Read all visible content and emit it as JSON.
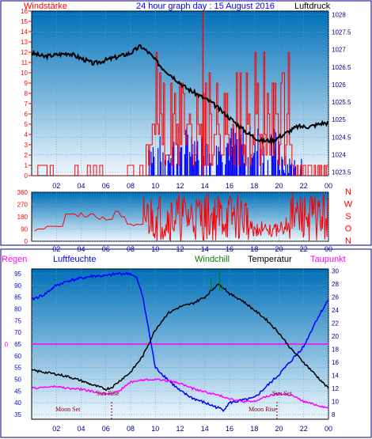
{
  "panel1": {
    "left_label": "Windstärke",
    "title": "24 hour graph day : 15 August 2016",
    "right_label": "Luftdruck"
  },
  "panel2": {
    "directions": [
      "N",
      "W",
      "S",
      "O",
      "N"
    ]
  },
  "panel3": {
    "labels": {
      "regen": "Regen",
      "luftfeuchte": "Luftfeuchte",
      "windchill": "Windchill",
      "temperatur": "Temperatur",
      "taupunkt": "Taupunkt"
    },
    "astro": {
      "sun_rise": "Sun Rise",
      "sun_set": "Sun Set",
      "moon_set": "Moon Set",
      "moon_rise": "Moon Rise"
    }
  },
  "colors": {
    "frame": "#000080",
    "wind": "#ff0000",
    "gust": "#0000ff",
    "pressure": "#000000",
    "direction": "#ff0000",
    "humidity": "#0000ff",
    "temperature": "#000000",
    "dewpoint": "#ff00ff",
    "windchill": "#008000",
    "rain_line": "#ff00ff",
    "gradient_top": "#0070b8",
    "gradient_bottom": "#e8f4fc"
  },
  "chart_data": [
    {
      "type": "line",
      "title": "24 hour graph day : 15 August 2016",
      "x_ticks": [
        "02",
        "04",
        "06",
        "08",
        "10",
        "12",
        "14",
        "16",
        "18",
        "20",
        "22",
        "00"
      ],
      "y_left": {
        "label": "Windstärke",
        "ticks": [
          0,
          1,
          2,
          3,
          4,
          5,
          6,
          7,
          8,
          9,
          10,
          11,
          12,
          13,
          14,
          15,
          16
        ],
        "range": [
          0,
          16
        ]
      },
      "y_right": {
        "label": "Luftdruck",
        "ticks": [
          1023.5,
          1024,
          1024.5,
          1025,
          1025.5,
          1026,
          1026.5,
          1027,
          1027.5,
          1028
        ],
        "range": [
          1023.4,
          1028.1
        ]
      },
      "series": [
        {
          "name": "Luftdruck",
          "axis": "right",
          "points": [
            [
              0,
              1026.9
            ],
            [
              1,
              1026.8
            ],
            [
              2,
              1026.85
            ],
            [
              3,
              1026.9
            ],
            [
              4,
              1026.75
            ],
            [
              5,
              1026.6
            ],
            [
              6,
              1026.7
            ],
            [
              7,
              1026.8
            ],
            [
              8,
              1026.9
            ],
            [
              8.8,
              1027.1
            ],
            [
              9.5,
              1026.9
            ],
            [
              10.5,
              1026.5
            ],
            [
              11.5,
              1026.2
            ],
            [
              12.5,
              1025.9
            ],
            [
              13.5,
              1025.7
            ],
            [
              14.5,
              1025.5
            ],
            [
              15.5,
              1025.2
            ],
            [
              16.5,
              1024.9
            ],
            [
              17.5,
              1024.6
            ],
            [
              18.5,
              1024.4
            ],
            [
              19.5,
              1024.4
            ],
            [
              20.5,
              1024.6
            ],
            [
              21.5,
              1024.8
            ],
            [
              22.5,
              1024.8
            ],
            [
              23.5,
              1024.9
            ],
            [
              24,
              1024.9
            ]
          ]
        },
        {
          "name": "Windstärke (mean)",
          "axis": "left",
          "points": [
            [
              0,
              0
            ],
            [
              2,
              0
            ],
            [
              2.2,
              1
            ],
            [
              2.5,
              0
            ],
            [
              3.5,
              1
            ],
            [
              4,
              0
            ],
            [
              5.5,
              1
            ],
            [
              6,
              0
            ],
            [
              7.5,
              0
            ],
            [
              8,
              1
            ],
            [
              8.5,
              0
            ],
            [
              9.5,
              2
            ],
            [
              10.5,
              3
            ],
            [
              11,
              2
            ],
            [
              11.5,
              4
            ],
            [
              12,
              2
            ],
            [
              12.5,
              5
            ],
            [
              13,
              3
            ],
            [
              13.5,
              6
            ],
            [
              14,
              4
            ],
            [
              14.3,
              6
            ],
            [
              15,
              3
            ],
            [
              15.5,
              5
            ],
            [
              16,
              2
            ],
            [
              16.5,
              4
            ],
            [
              17,
              3
            ],
            [
              17.5,
              5
            ],
            [
              18,
              2
            ],
            [
              18.5,
              3
            ],
            [
              19,
              2
            ],
            [
              19.5,
              4
            ],
            [
              20,
              2
            ],
            [
              20.5,
              1
            ],
            [
              21,
              0
            ],
            [
              21.5,
              2
            ],
            [
              22,
              1
            ],
            [
              23,
              1
            ],
            [
              24,
              1
            ]
          ]
        },
        {
          "name": "Windstärke (gust)",
          "axis": "left",
          "points": [
            [
              9.5,
              5
            ],
            [
              10.5,
              8
            ],
            [
              11.5,
              9
            ],
            [
              12.5,
              10
            ],
            [
              13,
              9
            ],
            [
              13.8,
              16
            ],
            [
              14.2,
              8
            ],
            [
              15,
              9
            ],
            [
              15.5,
              7
            ],
            [
              16,
              10
            ],
            [
              16.5,
              8
            ],
            [
              17.5,
              9
            ],
            [
              18.5,
              6
            ],
            [
              19.5,
              8
            ],
            [
              20,
              5
            ],
            [
              21,
              3
            ],
            [
              22,
              4
            ]
          ]
        }
      ]
    },
    {
      "type": "line",
      "title": "",
      "x_ticks": [
        "02",
        "04",
        "06",
        "08",
        "10",
        "12",
        "14",
        "16",
        "18",
        "20",
        "22",
        "00"
      ],
      "y_left": {
        "ticks": [
          0,
          90,
          180,
          270,
          360
        ],
        "range": [
          0,
          360
        ]
      },
      "y_right": {
        "ticks": [
          "N",
          "W",
          "S",
          "O",
          "N"
        ]
      },
      "series": [
        {
          "name": "Windrichtung",
          "points": [
            [
              0,
              90
            ],
            [
              1,
              90
            ],
            [
              1,
              110
            ],
            [
              2,
              110
            ],
            [
              2.3,
              200
            ],
            [
              3,
              200
            ],
            [
              3.5,
              180
            ],
            [
              4,
              180
            ],
            [
              4.5,
              200
            ],
            [
              5,
              160
            ],
            [
              6,
              160
            ],
            [
              6.5,
              220
            ],
            [
              7,
              180
            ],
            [
              7.3,
              90
            ],
            [
              8,
              90
            ],
            [
              8.5,
              220
            ],
            [
              9,
              240
            ],
            [
              10,
              120
            ],
            [
              11,
              260
            ],
            [
              12,
              150
            ],
            [
              13,
              240
            ],
            [
              14,
              100
            ],
            [
              15,
              260
            ],
            [
              16,
              130
            ],
            [
              17,
              200
            ],
            [
              18,
              60
            ],
            [
              19,
              80
            ],
            [
              20,
              50
            ],
            [
              21,
              200
            ],
            [
              22,
              240
            ],
            [
              23,
              220
            ],
            [
              24,
              250
            ]
          ]
        }
      ]
    },
    {
      "type": "line",
      "title": "",
      "x_ticks": [
        "02",
        "04",
        "06",
        "08",
        "10",
        "12",
        "14",
        "16",
        "18",
        "20",
        "22",
        "00"
      ],
      "y_left": {
        "label": "Luftfeuchte",
        "ticks": [
          35,
          40,
          45,
          50,
          55,
          60,
          65,
          70,
          75,
          80,
          85,
          90,
          95
        ],
        "range": [
          33,
          97
        ]
      },
      "y_right": {
        "label": "Temperatur",
        "ticks": [
          8,
          10,
          12,
          14,
          16,
          18,
          20,
          22,
          24,
          26,
          28,
          30
        ],
        "range": [
          7.3,
          30.3
        ]
      },
      "regen_axis": {
        "label": "Regen",
        "ticks": [
          0
        ]
      },
      "series": [
        {
          "name": "Luftfeuchte",
          "axis": "left",
          "points": [
            [
              0,
              84
            ],
            [
              1,
              86
            ],
            [
              2,
              90
            ],
            [
              3,
              92
            ],
            [
              4,
              93
            ],
            [
              5,
              94
            ],
            [
              6,
              94
            ],
            [
              7,
              95
            ],
            [
              8,
              95
            ],
            [
              8.5,
              93
            ],
            [
              9,
              85
            ],
            [
              9.5,
              70
            ],
            [
              10,
              55
            ],
            [
              11,
              50
            ],
            [
              12,
              45
            ],
            [
              13,
              42
            ],
            [
              14,
              40
            ],
            [
              15,
              38
            ],
            [
              15.5,
              37
            ],
            [
              16,
              40
            ],
            [
              17,
              41
            ],
            [
              18,
              42
            ],
            [
              19,
              47
            ],
            [
              20,
              52
            ],
            [
              21,
              58
            ],
            [
              22,
              64
            ],
            [
              23,
              75
            ],
            [
              24,
              84
            ]
          ]
        },
        {
          "name": "Temperatur",
          "axis": "right",
          "points": [
            [
              0,
              14.8
            ],
            [
              1,
              14.5
            ],
            [
              2,
              14.2
            ],
            [
              3,
              13.8
            ],
            [
              4,
              13.2
            ],
            [
              5,
              12.5
            ],
            [
              6,
              11.9
            ],
            [
              6.5,
              12.2
            ],
            [
              7,
              13
            ],
            [
              8,
              14.5
            ],
            [
              9,
              17
            ],
            [
              10,
              21
            ],
            [
              11,
              23.5
            ],
            [
              12,
              24.5
            ],
            [
              13,
              25
            ],
            [
              14,
              26
            ],
            [
              14.8,
              27.5
            ],
            [
              15,
              28
            ],
            [
              15.5,
              27.5
            ],
            [
              16,
              26.5
            ],
            [
              17,
              25.5
            ],
            [
              18,
              24
            ],
            [
              19,
              22.5
            ],
            [
              20,
              20.5
            ],
            [
              21,
              18
            ],
            [
              22,
              16
            ],
            [
              23,
              14
            ],
            [
              24,
              12
            ]
          ]
        },
        {
          "name": "Taupunkt",
          "axis": "right",
          "points": [
            [
              0,
              12
            ],
            [
              1,
              12.2
            ],
            [
              2,
              12.3
            ],
            [
              3,
              12
            ],
            [
              4,
              11.9
            ],
            [
              5,
              11.5
            ],
            [
              6,
              11.2
            ],
            [
              7,
              11.5
            ],
            [
              8,
              13
            ],
            [
              9,
              13.3
            ],
            [
              10,
              13.4
            ],
            [
              11,
              13.2
            ],
            [
              12,
              12.8
            ],
            [
              13,
              12
            ],
            [
              14,
              11.5
            ],
            [
              15,
              11
            ],
            [
              16,
              10.5
            ],
            [
              17,
              10
            ],
            [
              18,
              10
            ],
            [
              19,
              10.8
            ],
            [
              20,
              11.2
            ],
            [
              21,
              11
            ],
            [
              22,
              10
            ],
            [
              23,
              9.5
            ],
            [
              24,
              9
            ]
          ]
        },
        {
          "name": "Windchill",
          "axis": "right",
          "points": [
            [
              14.5,
              29
            ],
            [
              14.7,
              27
            ],
            [
              15.2,
              30
            ],
            [
              15.4,
              28
            ]
          ]
        },
        {
          "name": "Regen",
          "axis": "regen",
          "points": [
            [
              0,
              0
            ],
            [
              24,
              0
            ]
          ]
        }
      ],
      "annotations": [
        "Sun Rise",
        "Moon Set",
        "Moon Rise",
        "Sun Set"
      ]
    }
  ]
}
